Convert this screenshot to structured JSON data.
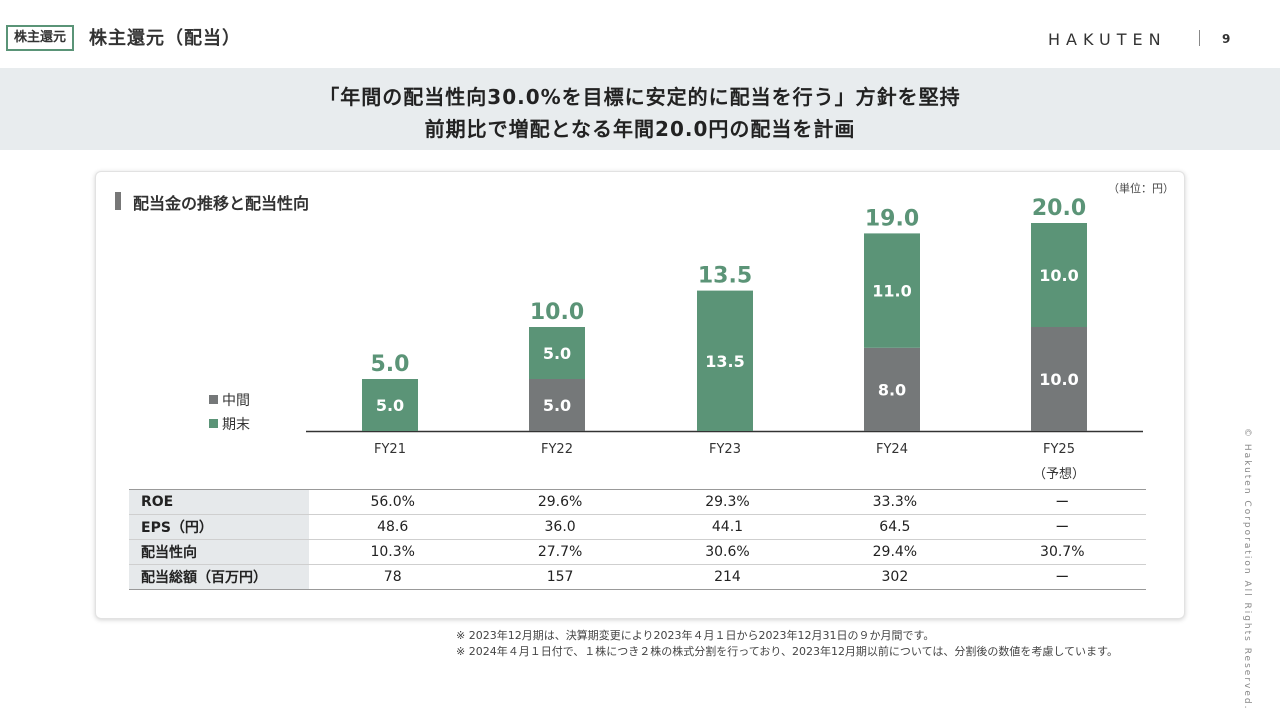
{
  "header": {
    "tag": "株主還元",
    "title": "株主還元（配当）",
    "logo": "HAKUTEN",
    "page_number": "9"
  },
  "banner": {
    "line1": "「年間の配当性向30.0%を目標に安定的に配当を行う」方針を堅持",
    "line2": "前期比で増配となる年間20.0円の配当を計画"
  },
  "chart_title": "配当金の推移と配当性向",
  "unit_note": "（単位：円）",
  "colors": {
    "interim": "#757879",
    "year_end": "#5b9477",
    "total_label": "#5b9477"
  },
  "chart_data": {
    "type": "bar",
    "stacked": true,
    "categories": [
      "FY21",
      "FY22",
      "FY23",
      "FY24",
      "FY25"
    ],
    "category_sublabels": [
      "",
      "",
      "",
      "",
      "（予想）"
    ],
    "series": [
      {
        "name": "中間",
        "values": [
          0,
          5.0,
          0,
          8.0,
          10.0
        ],
        "labels": [
          "",
          "5.0",
          "",
          "8.0",
          "10.0"
        ]
      },
      {
        "name": "期末",
        "values": [
          5.0,
          5.0,
          13.5,
          11.0,
          10.0
        ],
        "labels": [
          "5.0",
          "5.0",
          "13.5",
          "11.0",
          "10.0"
        ]
      }
    ],
    "totals": [
      "5.0",
      "10.0",
      "13.5",
      "19.0",
      "20.0"
    ],
    "ylim": [
      0,
      20.0
    ],
    "legend": [
      "中間",
      "期末"
    ],
    "legend_position": "left"
  },
  "table": {
    "rows": [
      {
        "label": "ROE",
        "values": [
          "56.0%",
          "29.6%",
          "29.3%",
          "33.3%",
          "ー"
        ]
      },
      {
        "label": "EPS（円）",
        "values": [
          "48.6",
          "36.0",
          "44.1",
          "64.5",
          "ー"
        ]
      },
      {
        "label": "配当性向",
        "values": [
          "10.3%",
          "27.7%",
          "30.6%",
          "29.4%",
          "30.7%"
        ]
      },
      {
        "label": "配当総額（百万円）",
        "values": [
          "78",
          "157",
          "214",
          "302",
          "ー"
        ]
      }
    ]
  },
  "footnotes": [
    "※ 2023年12月期は、決算期変更により2023年４月１日から2023年12月31日の９か月間です。",
    "※ 2024年４月１日付で、１株につき２株の株式分割を行っており、2023年12月期以前については、分割後の数値を考慮しています。"
  ],
  "copyright": "© Hakuten Corporation All Rights Reserved."
}
